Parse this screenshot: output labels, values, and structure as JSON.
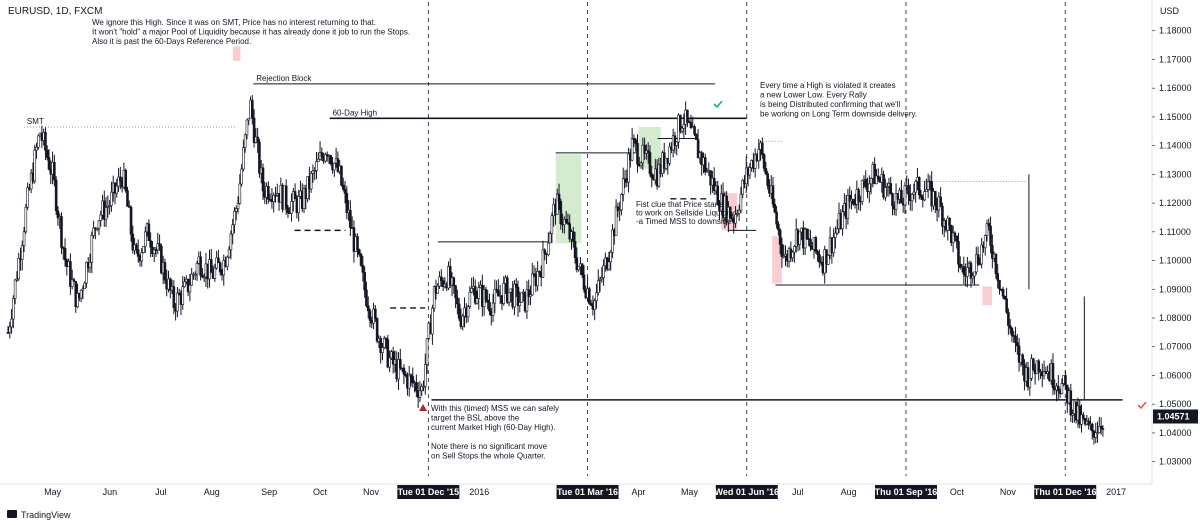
{
  "header": {
    "symbol": "EURUSD, 1D, FXCM"
  },
  "footer": {
    "brand": "TradingView"
  },
  "chart_data": {
    "type": "candlestick",
    "currency": "USD",
    "ylim": [
      1.025,
      1.19
    ],
    "y_ticks": [
      "1.18000",
      "1.17000",
      "1.16000",
      "1.15000",
      "1.14000",
      "1.13000",
      "1.12000",
      "1.11000",
      "1.10000",
      "1.09000",
      "1.08000",
      "1.07000",
      "1.06000",
      "1.05000",
      "1.04000",
      "1.03000"
    ],
    "y_tick_values": [
      1.18,
      1.17,
      1.16,
      1.15,
      1.14,
      1.13,
      1.12,
      1.11,
      1.1,
      1.09,
      1.08,
      1.07,
      1.06,
      1.05,
      1.04,
      1.03
    ],
    "last_price": "1.04571",
    "last_price_value": 1.04571,
    "x_ticks": [
      "May",
      "Jun",
      "Jul",
      "Aug",
      "Sep",
      "Oct",
      "Nov",
      "2016",
      "Apr",
      "May",
      "Jul",
      "Aug",
      "Oct",
      "Nov",
      "2017"
    ],
    "x_tick_positions": [
      2015.33,
      2015.42,
      2015.5,
      2015.58,
      2015.67,
      2015.75,
      2015.83,
      2016.0,
      2016.25,
      2016.33,
      2016.5,
      2016.58,
      2016.75,
      2016.83,
      2017.0
    ],
    "date_markers": [
      {
        "label": "Tue 01 Dec '15",
        "x": 2015.92
      },
      {
        "label": "Tue 01 Mar '16",
        "x": 2016.17
      },
      {
        "label": "Wed 01 Jun '16",
        "x": 2016.42
      },
      {
        "label": "Thu 01 Sep '16",
        "x": 2016.67
      },
      {
        "label": "Thu 01 Dec '16",
        "x": 2016.92
      }
    ],
    "x_range": [
      2015.26,
      2017.05
    ],
    "path": [
      [
        2015.26,
        1.075
      ],
      [
        2015.29,
        1.12
      ],
      [
        2015.31,
        1.145
      ],
      [
        2015.33,
        1.13
      ],
      [
        2015.35,
        1.1
      ],
      [
        2015.37,
        1.085
      ],
      [
        2015.4,
        1.115
      ],
      [
        2015.42,
        1.12
      ],
      [
        2015.44,
        1.13
      ],
      [
        2015.46,
        1.1
      ],
      [
        2015.48,
        1.11
      ],
      [
        2015.5,
        1.1
      ],
      [
        2015.52,
        1.085
      ],
      [
        2015.54,
        1.09
      ],
      [
        2015.56,
        1.1
      ],
      [
        2015.58,
        1.095
      ],
      [
        2015.6,
        1.1
      ],
      [
        2015.62,
        1.12
      ],
      [
        2015.64,
        1.155
      ],
      [
        2015.66,
        1.125
      ],
      [
        2015.68,
        1.125
      ],
      [
        2015.7,
        1.12
      ],
      [
        2015.72,
        1.12
      ],
      [
        2015.74,
        1.13
      ],
      [
        2015.76,
        1.14
      ],
      [
        2015.78,
        1.13
      ],
      [
        2015.8,
        1.11
      ],
      [
        2015.82,
        1.09
      ],
      [
        2015.84,
        1.075
      ],
      [
        2015.86,
        1.065
      ],
      [
        2015.88,
        1.06
      ],
      [
        2015.91,
        1.055
      ],
      [
        2015.93,
        1.09
      ],
      [
        2015.95,
        1.095
      ],
      [
        2015.97,
        1.08
      ],
      [
        2015.99,
        1.09
      ],
      [
        2016.02,
        1.085
      ],
      [
        2016.04,
        1.09
      ],
      [
        2016.07,
        1.085
      ],
      [
        2016.1,
        1.1
      ],
      [
        2016.12,
        1.12
      ],
      [
        2016.14,
        1.11
      ],
      [
        2016.16,
        1.095
      ],
      [
        2016.18,
        1.085
      ],
      [
        2016.2,
        1.1
      ],
      [
        2016.22,
        1.12
      ],
      [
        2016.24,
        1.14
      ],
      [
        2016.26,
        1.135
      ],
      [
        2016.28,
        1.13
      ],
      [
        2016.3,
        1.14
      ],
      [
        2016.32,
        1.15
      ],
      [
        2016.34,
        1.14
      ],
      [
        2016.36,
        1.13
      ],
      [
        2016.38,
        1.12
      ],
      [
        2016.4,
        1.115
      ],
      [
        2016.42,
        1.13
      ],
      [
        2016.44,
        1.14
      ],
      [
        2016.46,
        1.12
      ],
      [
        2016.48,
        1.1
      ],
      [
        2016.5,
        1.11
      ],
      [
        2016.52,
        1.105
      ],
      [
        2016.54,
        1.1
      ],
      [
        2016.56,
        1.11
      ],
      [
        2016.58,
        1.12
      ],
      [
        2016.6,
        1.125
      ],
      [
        2016.62,
        1.13
      ],
      [
        2016.64,
        1.125
      ],
      [
        2016.66,
        1.12
      ],
      [
        2016.68,
        1.125
      ],
      [
        2016.7,
        1.125
      ],
      [
        2016.72,
        1.12
      ],
      [
        2016.74,
        1.11
      ],
      [
        2016.76,
        1.095
      ],
      [
        2016.78,
        1.1
      ],
      [
        2016.8,
        1.11
      ],
      [
        2016.82,
        1.09
      ],
      [
        2016.84,
        1.07
      ],
      [
        2016.86,
        1.06
      ],
      [
        2016.88,
        1.065
      ],
      [
        2016.9,
        1.06
      ],
      [
        2016.92,
        1.055
      ],
      [
        2016.94,
        1.045
      ],
      [
        2016.96,
        1.04
      ],
      [
        2016.98,
        1.045
      ]
    ],
    "levels": [
      {
        "label": "Rejection Block",
        "y": 1.1615,
        "x1": 2015.645,
        "x2": 2016.37,
        "style": "solid",
        "color": "#131722"
      },
      {
        "label": "60-Day High",
        "y": 1.1495,
        "x1": 2015.765,
        "x2": 2016.42,
        "style": "solid-thick",
        "color": "#131722"
      },
      {
        "label": "SMT",
        "y": 1.1465,
        "x1": 2015.285,
        "x2": 2015.62,
        "style": "dotted",
        "color": "#999999"
      },
      {
        "label": "",
        "y": 1.0515,
        "x1": 2015.925,
        "x2": 2017.01,
        "style": "solid-thick",
        "color": "#131722"
      },
      {
        "label": "",
        "y": 1.1105,
        "x1": 2015.71,
        "x2": 2015.79,
        "style": "dashed",
        "color": "#131722"
      },
      {
        "label": "",
        "y": 1.0835,
        "x1": 2015.86,
        "x2": 2015.915,
        "style": "dashed",
        "color": "#131722"
      },
      {
        "label": "",
        "y": 1.1065,
        "x1": 2015.935,
        "x2": 2016.115,
        "style": "solid",
        "color": "#131722"
      },
      {
        "label": "",
        "y": 1.1375,
        "x1": 2016.12,
        "x2": 2016.25,
        "style": "solid",
        "color": "#131722"
      },
      {
        "label": "",
        "y": 1.1425,
        "x1": 2016.28,
        "x2": 2016.34,
        "style": "solid",
        "color": "#131722"
      },
      {
        "label": "",
        "y": 1.1215,
        "x1": 2016.3,
        "x2": 2016.36,
        "style": "dashed",
        "color": "#131722"
      },
      {
        "label": "",
        "y": 1.1105,
        "x1": 2016.39,
        "x2": 2016.435,
        "style": "solid",
        "color": "#131722"
      },
      {
        "label": "",
        "y": 1.0915,
        "x1": 2016.465,
        "x2": 2016.785,
        "style": "solid",
        "color": "#131722"
      },
      {
        "label": "",
        "y": 1.1415,
        "x1": 2016.445,
        "x2": 2016.475,
        "style": "dotted",
        "color": "#999999"
      },
      {
        "label": "",
        "y": 1.1275,
        "x1": 2016.69,
        "x2": 2016.86,
        "style": "dotted",
        "color": "#999999"
      }
    ],
    "zones": [
      {
        "x1": 2015.613,
        "x2": 2015.625,
        "y1": 1.1695,
        "y2": 1.1745,
        "color": "#f8c8cc"
      },
      {
        "x1": 2016.12,
        "x2": 2016.16,
        "y1": 1.106,
        "y2": 1.137,
        "color": "#cfe9cb"
      },
      {
        "x1": 2016.25,
        "x2": 2016.285,
        "y1": 1.132,
        "y2": 1.1465,
        "color": "#cfe9cb"
      },
      {
        "x1": 2016.38,
        "x2": 2016.405,
        "y1": 1.1105,
        "y2": 1.1235,
        "color": "#f8c8cc"
      },
      {
        "x1": 2016.46,
        "x2": 2016.475,
        "y1": 1.092,
        "y2": 1.1085,
        "color": "#f8c8cc"
      },
      {
        "x1": 2016.79,
        "x2": 2016.805,
        "y1": 1.0845,
        "y2": 1.091,
        "color": "#f8c8cc"
      }
    ],
    "annotations": {
      "top_note": [
        "We ignore this High. Since it was on SMT, Price has no interest returning to that.",
        "It won't \"hold\" a major Pool of Liquidity because it has already done it job to run the Stops.",
        "Also it is past the 60-Days Reference Period."
      ],
      "right_note": [
        "Every time a High is violated it creates",
        "a new Lower Low. Every Rally",
        "is being Distributed confirming that we'll",
        "be working on Long Term downside delivery."
      ],
      "mid_note": [
        "Fist clue that Price starts",
        "to work on Sellside Liquidity",
        "-a Timed MSS to downside-"
      ],
      "bottom_note": [
        "With this (timed) MSS we can safely",
        "target the BSL above the",
        "current Market High (60-Day High).",
        "",
        "Note there is no significant move",
        "on Sell Stops the whole Quarter."
      ]
    },
    "colors": {
      "candle": "#131722",
      "price_badge": "#131722",
      "check": "#26a69a",
      "check_red": "#ef5350",
      "arrow_up": "#b22833"
    }
  }
}
